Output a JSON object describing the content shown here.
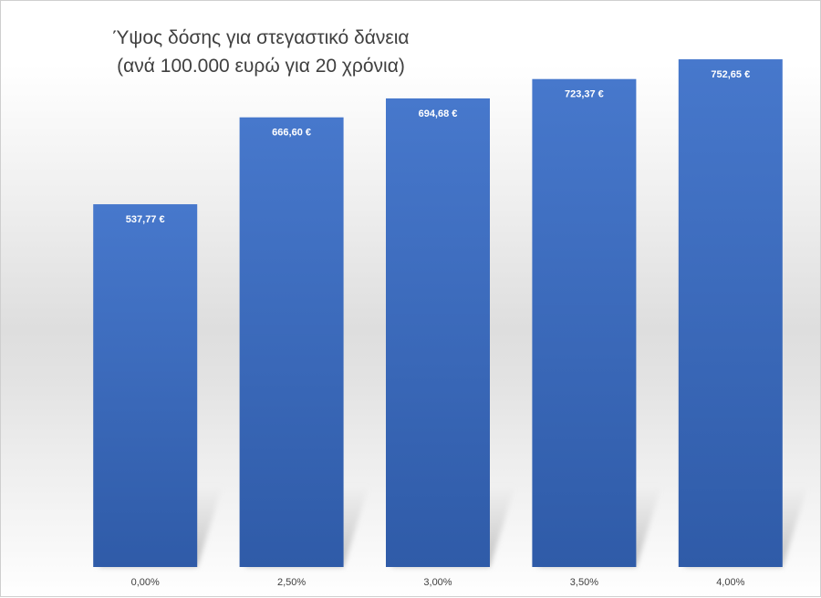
{
  "chart_data": {
    "type": "bar",
    "title": "Ύψος δόσης για στεγαστικό δάνεια",
    "subtitle": "(ανά 100.000 ευρώ για 20 χρόνια)",
    "categories": [
      "0,00%",
      "2,50%",
      "3,00%",
      "3,50%",
      "4,00%"
    ],
    "values": [
      537.77,
      666.6,
      694.68,
      723.37,
      752.65
    ],
    "data_labels": [
      "537,77 €",
      "666,60 €",
      "694,68 €",
      "723,37 €",
      "752,65 €"
    ],
    "ylim": [
      0,
      800
    ],
    "grid": false,
    "legend": "none",
    "colors": {
      "bar_top": "#4778cc",
      "bar_bottom": "#2f5ba8",
      "shadow": "#b8b8b8"
    }
  }
}
